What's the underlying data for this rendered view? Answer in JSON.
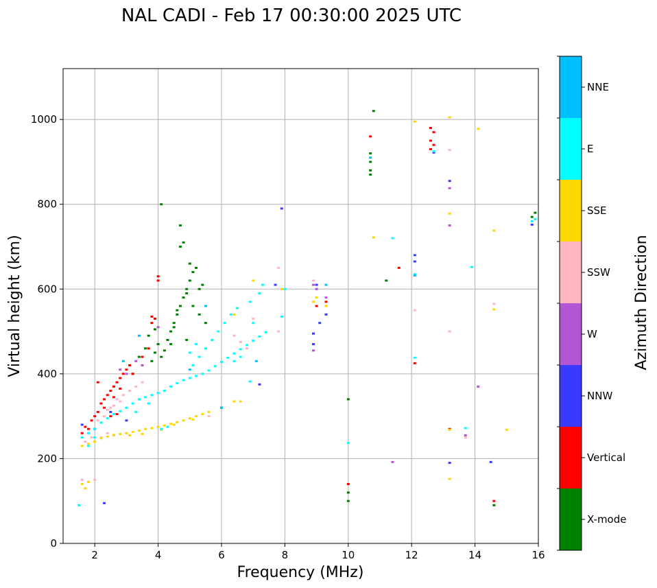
{
  "chart_data": {
    "type": "scatter",
    "title": "NAL CADI - Feb 17 00:30:00 2025 UTC",
    "xlabel": "Frequency (MHz)",
    "ylabel": "Virtual height (km)",
    "xlim": [
      1,
      16
    ],
    "ylim": [
      0,
      1120
    ],
    "xticks": [
      "2",
      "4",
      "6",
      "8",
      "10",
      "12",
      "14",
      "16"
    ],
    "yticks": [
      "0",
      "200",
      "400",
      "600",
      "800",
      "1000"
    ],
    "grid": true,
    "colorbar": {
      "label": "Azimuth Direction",
      "categories": [
        {
          "name": "X-mode",
          "color": "#008000"
        },
        {
          "name": "Vertical",
          "color": "#ff0000"
        },
        {
          "name": "NNW",
          "color": "#3a3aff"
        },
        {
          "name": "W",
          "color": "#b455d6"
        },
        {
          "name": "SSW",
          "color": "#ffb6c1"
        },
        {
          "name": "SSE",
          "color": "#ffd700"
        },
        {
          "name": "E",
          "color": "#00ffff"
        },
        {
          "name": "NNE",
          "color": "#00bfff"
        }
      ]
    },
    "series": [
      {
        "name": "X-mode",
        "points": [
          [
            3.4,
            440
          ],
          [
            3.6,
            460
          ],
          [
            3.8,
            430
          ],
          [
            3.9,
            450
          ],
          [
            4.0,
            470
          ],
          [
            4.1,
            440
          ],
          [
            4.2,
            455
          ],
          [
            4.3,
            480
          ],
          [
            4.4,
            500
          ],
          [
            4.5,
            520
          ],
          [
            4.6,
            540
          ],
          [
            4.7,
            560
          ],
          [
            4.5,
            510
          ],
          [
            4.8,
            580
          ],
          [
            4.9,
            600
          ],
          [
            5.0,
            620
          ],
          [
            5.1,
            640
          ],
          [
            4.6,
            550
          ],
          [
            4.9,
            590
          ],
          [
            5.3,
            600
          ],
          [
            5.4,
            610
          ],
          [
            5.2,
            650
          ],
          [
            5.0,
            660
          ],
          [
            4.7,
            700
          ],
          [
            4.8,
            710
          ],
          [
            4.7,
            750
          ],
          [
            4.1,
            800
          ],
          [
            3.7,
            490
          ],
          [
            3.9,
            505
          ],
          [
            4.4,
            470
          ],
          [
            4.9,
            480
          ],
          [
            5.5,
            520
          ],
          [
            5.1,
            560
          ],
          [
            5.3,
            540
          ],
          [
            10.7,
            870
          ],
          [
            10.7,
            880
          ],
          [
            10.7,
            900
          ],
          [
            10.7,
            920
          ],
          [
            10.8,
            1020
          ],
          [
            11.2,
            620
          ],
          [
            10.0,
            100
          ],
          [
            10.0,
            120
          ],
          [
            10.0,
            340
          ],
          [
            14.6,
            90
          ],
          [
            15.9,
            780
          ],
          [
            15.8,
            770
          ],
          [
            6.0,
            320
          ],
          [
            3.2,
            400
          ]
        ]
      },
      {
        "name": "Vertical",
        "points": [
          [
            1.8,
            270
          ],
          [
            1.9,
            290
          ],
          [
            2.0,
            300
          ],
          [
            2.1,
            310
          ],
          [
            2.2,
            330
          ],
          [
            2.3,
            340
          ],
          [
            2.4,
            350
          ],
          [
            2.5,
            360
          ],
          [
            2.6,
            370
          ],
          [
            2.7,
            380
          ],
          [
            2.8,
            390
          ],
          [
            2.9,
            400
          ],
          [
            3.0,
            410
          ],
          [
            3.1,
            420
          ],
          [
            2.3,
            320
          ],
          [
            2.6,
            345
          ],
          [
            2.8,
            365
          ],
          [
            3.2,
            400
          ],
          [
            3.5,
            440
          ],
          [
            3.7,
            460
          ],
          [
            3.8,
            520
          ],
          [
            3.8,
            535
          ],
          [
            3.9,
            530
          ],
          [
            4.0,
            630
          ],
          [
            4.0,
            620
          ],
          [
            2.1,
            380
          ],
          [
            2.5,
            300
          ],
          [
            2.7,
            305
          ],
          [
            1.6,
            260
          ],
          [
            1.7,
            275
          ],
          [
            9.0,
            560
          ],
          [
            9.3,
            570
          ],
          [
            10.7,
            960
          ],
          [
            11.6,
            650
          ],
          [
            12.1,
            425
          ],
          [
            10.0,
            140
          ],
          [
            12.6,
            930
          ],
          [
            12.6,
            950
          ],
          [
            12.7,
            970
          ],
          [
            12.6,
            980
          ],
          [
            12.7,
            940
          ],
          [
            13.2,
            270
          ],
          [
            14.6,
            100
          ]
        ]
      },
      {
        "name": "NNW",
        "points": [
          [
            2.3,
            95
          ],
          [
            1.6,
            280
          ],
          [
            2.0,
            270
          ],
          [
            2.5,
            310
          ],
          [
            3.0,
            290
          ],
          [
            7.2,
            375
          ],
          [
            7.9,
            790
          ],
          [
            7.7,
            610
          ],
          [
            8.9,
            470
          ],
          [
            8.9,
            495
          ],
          [
            9.1,
            520
          ],
          [
            9.3,
            540
          ],
          [
            12.1,
            680
          ],
          [
            12.1,
            665
          ],
          [
            13.2,
            855
          ],
          [
            13.2,
            190
          ],
          [
            14.5,
            192
          ],
          [
            15.8,
            752
          ],
          [
            12.7,
            922
          ],
          [
            9.0,
            610
          ]
        ]
      },
      {
        "name": "W",
        "points": [
          [
            3.3,
            430
          ],
          [
            3.5,
            420
          ],
          [
            4.0,
            510
          ],
          [
            8.9,
            455
          ],
          [
            8.9,
            610
          ],
          [
            9.0,
            600
          ],
          [
            9.3,
            580
          ],
          [
            13.2,
            838
          ],
          [
            13.2,
            750
          ],
          [
            14.1,
            370
          ],
          [
            11.4,
            192
          ],
          [
            13.7,
            255
          ],
          [
            2.8,
            410
          ],
          [
            3.0,
            400
          ]
        ]
      },
      {
        "name": "SSW",
        "points": [
          [
            1.6,
            150
          ],
          [
            2.0,
            150
          ],
          [
            2.0,
            240
          ],
          [
            2.2,
            250
          ],
          [
            2.4,
            260
          ],
          [
            2.6,
            255
          ],
          [
            2.1,
            290
          ],
          [
            2.3,
            300
          ],
          [
            2.5,
            320
          ],
          [
            2.7,
            340
          ],
          [
            2.9,
            350
          ],
          [
            3.1,
            360
          ],
          [
            3.3,
            370
          ],
          [
            3.5,
            380
          ],
          [
            2.4,
            315
          ],
          [
            2.6,
            325
          ],
          [
            2.8,
            335
          ],
          [
            6.4,
            490
          ],
          [
            6.6,
            475
          ],
          [
            6.8,
            460
          ],
          [
            7.0,
            530
          ],
          [
            7.8,
            650
          ],
          [
            7.8,
            500
          ],
          [
            8.9,
            620
          ],
          [
            12.1,
            550
          ],
          [
            13.2,
            500
          ],
          [
            13.2,
            928
          ],
          [
            14.6,
            565
          ],
          [
            13.7,
            250
          ],
          [
            1.9,
            250
          ],
          [
            1.7,
            240
          ],
          [
            5.6,
            300
          ]
        ]
      },
      {
        "name": "SSE",
        "points": [
          [
            1.6,
            140
          ],
          [
            1.7,
            130
          ],
          [
            1.8,
            145
          ],
          [
            1.6,
            230
          ],
          [
            1.8,
            235
          ],
          [
            2.0,
            240
          ],
          [
            2.2,
            248
          ],
          [
            2.4,
            252
          ],
          [
            2.6,
            256
          ],
          [
            2.8,
            258
          ],
          [
            3.0,
            260
          ],
          [
            3.2,
            263
          ],
          [
            3.4,
            266
          ],
          [
            3.6,
            270
          ],
          [
            3.8,
            272
          ],
          [
            4.0,
            275
          ],
          [
            4.2,
            278
          ],
          [
            4.4,
            282
          ],
          [
            4.6,
            286
          ],
          [
            4.8,
            290
          ],
          [
            5.0,
            295
          ],
          [
            5.2,
            300
          ],
          [
            5.4,
            305
          ],
          [
            5.6,
            310
          ],
          [
            3.1,
            255
          ],
          [
            3.5,
            258
          ],
          [
            4.1,
            268
          ],
          [
            4.5,
            280
          ],
          [
            5.1,
            292
          ],
          [
            6.4,
            335
          ],
          [
            6.6,
            335
          ],
          [
            6.4,
            540
          ],
          [
            6.5,
            555
          ],
          [
            7.0,
            620
          ],
          [
            7.9,
            600
          ],
          [
            8.9,
            570
          ],
          [
            9.0,
            580
          ],
          [
            9.3,
            560
          ],
          [
            10.8,
            722
          ],
          [
            12.1,
            995
          ],
          [
            13.2,
            1005
          ],
          [
            13.2,
            778
          ],
          [
            13.2,
            152
          ],
          [
            13.2,
            268
          ],
          [
            14.1,
            978
          ],
          [
            14.6,
            738
          ],
          [
            14.6,
            552
          ],
          [
            15.0,
            268
          ]
        ]
      },
      {
        "name": "E",
        "points": [
          [
            1.5,
            90
          ],
          [
            1.6,
            250
          ],
          [
            1.8,
            260
          ],
          [
            2.0,
            270
          ],
          [
            2.2,
            285
          ],
          [
            2.4,
            295
          ],
          [
            2.6,
            305
          ],
          [
            2.8,
            312
          ],
          [
            3.0,
            320
          ],
          [
            3.2,
            330
          ],
          [
            3.4,
            340
          ],
          [
            3.6,
            345
          ],
          [
            3.8,
            350
          ],
          [
            4.0,
            355
          ],
          [
            4.2,
            360
          ],
          [
            4.4,
            370
          ],
          [
            4.6,
            378
          ],
          [
            4.8,
            385
          ],
          [
            5.0,
            390
          ],
          [
            5.2,
            395
          ],
          [
            5.4,
            400
          ],
          [
            5.6,
            408
          ],
          [
            5.8,
            418
          ],
          [
            6.0,
            428
          ],
          [
            6.2,
            438
          ],
          [
            6.4,
            448
          ],
          [
            6.6,
            458
          ],
          [
            6.8,
            468
          ],
          [
            7.0,
            478
          ],
          [
            7.2,
            488
          ],
          [
            7.4,
            498
          ],
          [
            5.1,
            420
          ],
          [
            5.3,
            440
          ],
          [
            5.5,
            460
          ],
          [
            5.7,
            480
          ],
          [
            5.9,
            500
          ],
          [
            6.1,
            520
          ],
          [
            6.3,
            540
          ],
          [
            6.5,
            555
          ],
          [
            6.9,
            570
          ],
          [
            7.2,
            590
          ],
          [
            7.3,
            610
          ],
          [
            5.2,
            470
          ],
          [
            5.0,
            450
          ],
          [
            6.4,
            430
          ],
          [
            6.6,
            440
          ],
          [
            7.0,
            520
          ],
          [
            3.3,
            310
          ],
          [
            3.7,
            330
          ],
          [
            4.1,
            270
          ],
          [
            4.3,
            275
          ],
          [
            1.8,
            230
          ],
          [
            7.9,
            535
          ],
          [
            8.0,
            600
          ],
          [
            10.0,
            237
          ],
          [
            11.4,
            720
          ],
          [
            12.1,
            635
          ],
          [
            12.1,
            438
          ],
          [
            13.7,
            272
          ],
          [
            13.9,
            652
          ],
          [
            12.7,
            925
          ],
          [
            15.9,
            765
          ],
          [
            15.8,
            760
          ],
          [
            2.0,
            250
          ],
          [
            6.9,
            382
          ]
        ]
      },
      {
        "name": "NNE",
        "points": [
          [
            3.4,
            490
          ],
          [
            5.0,
            410
          ],
          [
            6.0,
            320
          ],
          [
            7.1,
            430
          ],
          [
            9.3,
            610
          ],
          [
            12.1,
            632
          ],
          [
            10.7,
            910
          ],
          [
            5.5,
            560
          ],
          [
            2.9,
            430
          ]
        ]
      }
    ]
  }
}
